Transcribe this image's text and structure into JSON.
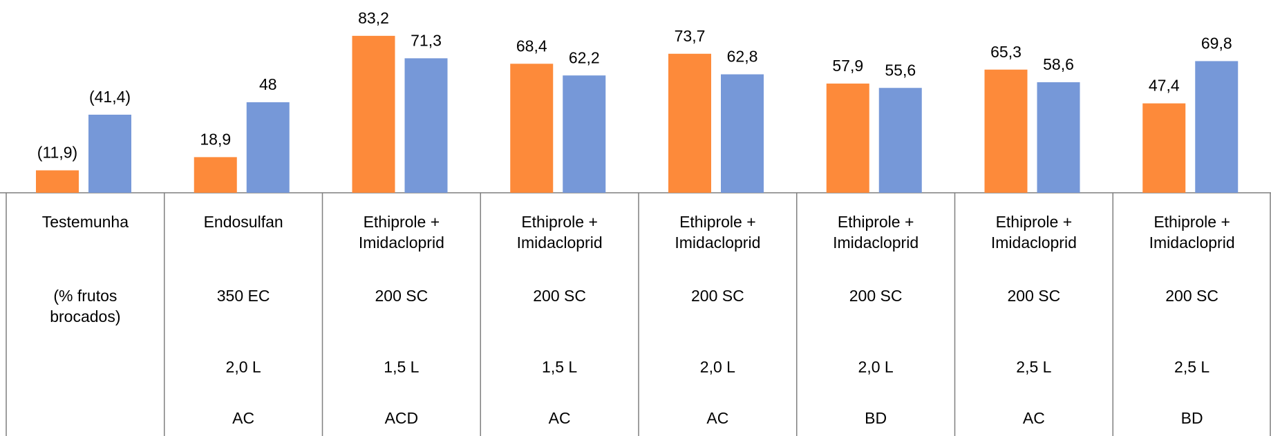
{
  "chart_data": {
    "type": "bar",
    "categories": [
      "Testemunha",
      "Endosulfan",
      "Ethiprole + Imidacloprid",
      "Ethiprole + Imidacloprid",
      "Ethiprole + Imidacloprid",
      "Ethiprole + Imidacloprid",
      "Ethiprole + Imidacloprid",
      "Ethiprole + Imidacloprid"
    ],
    "formulations": [
      "(% frutos brocados)",
      "350 EC",
      "200 SC",
      "200 SC",
      "200 SC",
      "200 SC",
      "200 SC",
      "200 SC"
    ],
    "doses": [
      null,
      "2,0 L",
      "1,5 L",
      "1,5 L",
      "2,0 L",
      "2,0 L",
      "2,5 L",
      "2,5 L"
    ],
    "groups": [
      null,
      "AC",
      "ACD",
      "AC",
      "AC",
      "BD",
      "AC",
      "BD"
    ],
    "series": [
      {
        "color": "#fd8a3a",
        "values": [
          11.9,
          18.9,
          83.2,
          68.4,
          73.7,
          57.9,
          65.3,
          47.4
        ],
        "value_labels": [
          "(11,9)",
          "18,9",
          "83,2",
          "68,4",
          "73,7",
          "57,9",
          "65,3",
          "47,4"
        ]
      },
      {
        "color": "#7698d8",
        "values": [
          41.4,
          48,
          71.3,
          62.2,
          62.8,
          55.6,
          58.6,
          69.8
        ],
        "value_labels": [
          "(41,4)",
          "48",
          "71,3",
          "62,2",
          "62,8",
          "55,6",
          "58,6",
          "69,8"
        ]
      }
    ],
    "ylim": [
      0,
      100
    ]
  }
}
